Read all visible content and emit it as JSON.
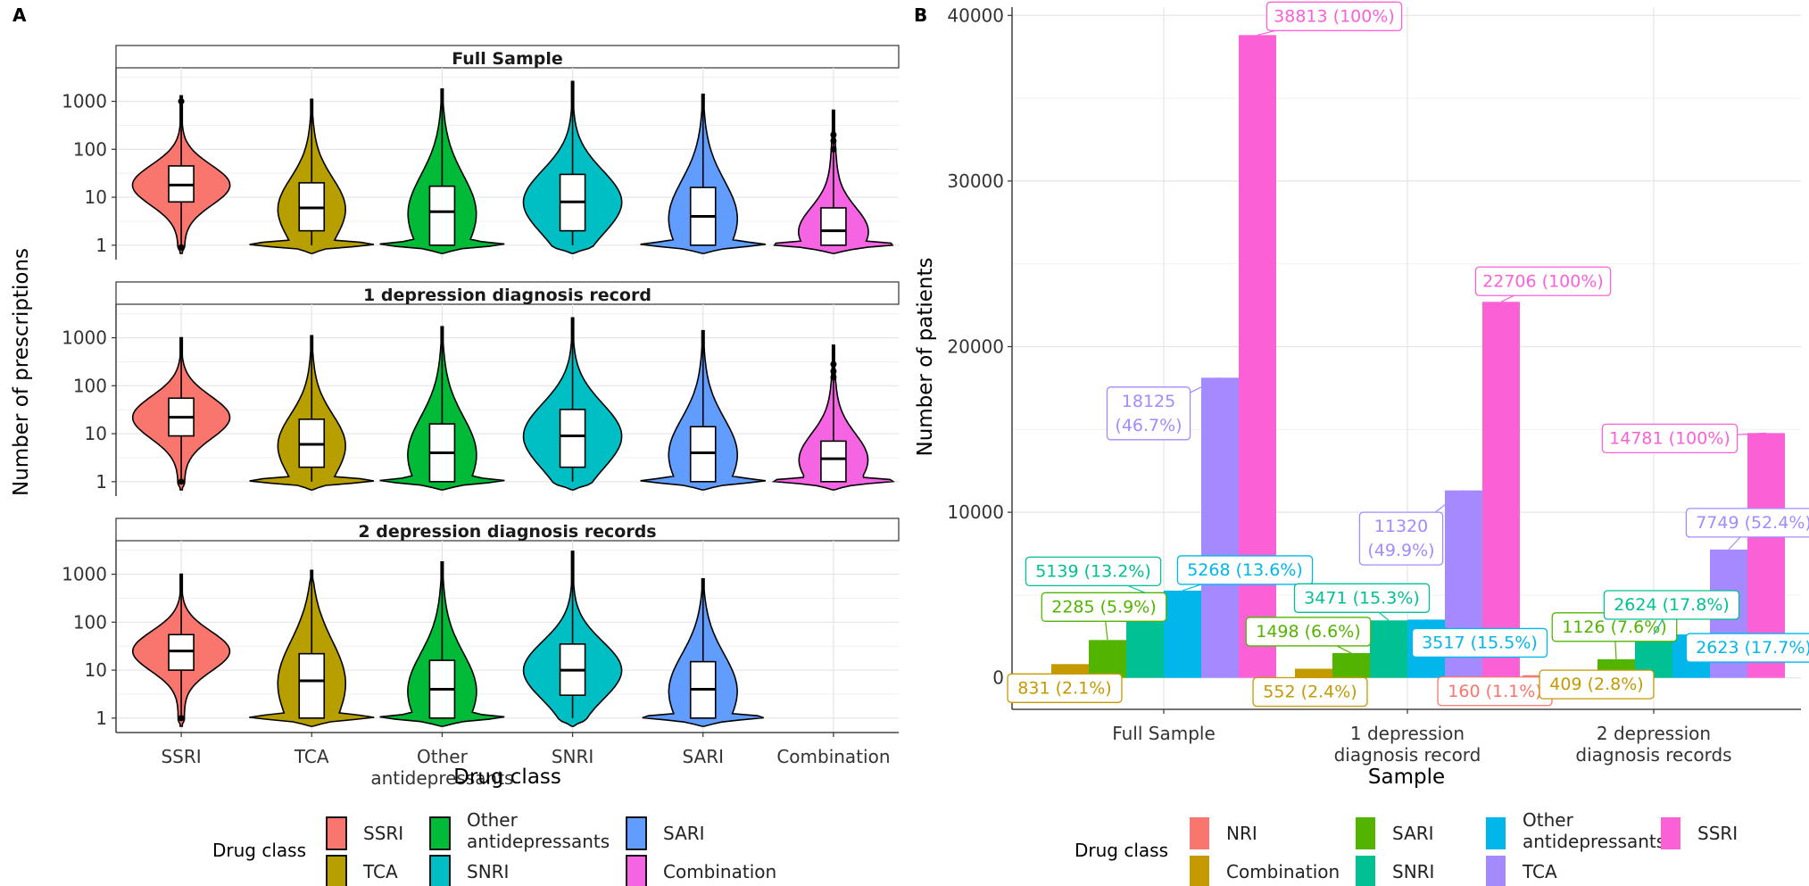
{
  "chart_data": [
    {
      "panel_letter": "A",
      "type": "violin",
      "ylabel": "Number of prescriptions",
      "xlabel": "Drug class",
      "yscale": "log10",
      "ylim": [
        0.5,
        5000
      ],
      "yticks": [
        1,
        10,
        100,
        1000
      ],
      "ytick_labels": [
        "1",
        "10",
        "100",
        "1000"
      ],
      "categories": [
        "SSRI",
        "TCA",
        "Other\nantidepressants",
        "SNRI",
        "SARI",
        "Combination"
      ],
      "colors": [
        "#F8766D",
        "#B79F00",
        "#00BA38",
        "#00BFC4",
        "#619CFF",
        "#F564E3"
      ],
      "grid": true,
      "legend": {
        "title": "Drug class",
        "position": "bottom",
        "entries": [
          "SSRI",
          "TCA",
          "Other\nantidepressants",
          "SNRI",
          "SARI",
          "Combination"
        ]
      },
      "facets": [
        {
          "title": "Full Sample",
          "groups": [
            {
              "category": "SSRI",
              "min": 1,
              "q1": 8,
              "median": 18,
              "q3": 45,
              "max": 1300,
              "outliers": [
                0.9,
                1000
              ]
            },
            {
              "category": "TCA",
              "min": 1,
              "q1": 2,
              "median": 6,
              "q3": 20,
              "max": 1100
            },
            {
              "category": "Other\nantidepressants",
              "min": 1,
              "q1": 1,
              "median": 5,
              "q3": 17,
              "max": 1800
            },
            {
              "category": "SNRI",
              "min": 1,
              "q1": 2,
              "median": 8,
              "q3": 30,
              "max": 2600
            },
            {
              "category": "SARI",
              "min": 1,
              "q1": 1,
              "median": 4,
              "q3": 16,
              "max": 1400
            },
            {
              "category": "Combination",
              "min": 1,
              "q1": 1,
              "median": 2,
              "q3": 6,
              "max": 650,
              "outliers": [
                100,
                150,
                200
              ]
            }
          ]
        },
        {
          "title": "1 depression diagnosis record",
          "groups": [
            {
              "category": "SSRI",
              "min": 1,
              "q1": 9,
              "median": 22,
              "q3": 55,
              "max": 1000,
              "outliers": [
                1
              ]
            },
            {
              "category": "TCA",
              "min": 1,
              "q1": 2,
              "median": 6,
              "q3": 20,
              "max": 1100
            },
            {
              "category": "Other\nantidepressants",
              "min": 1,
              "q1": 1,
              "median": 4,
              "q3": 16,
              "max": 1700
            },
            {
              "category": "SNRI",
              "min": 1,
              "q1": 2,
              "median": 9,
              "q3": 32,
              "max": 2600
            },
            {
              "category": "SARI",
              "min": 1,
              "q1": 1,
              "median": 4,
              "q3": 14,
              "max": 1400
            },
            {
              "category": "Combination",
              "min": 1,
              "q1": 1,
              "median": 3,
              "q3": 7,
              "max": 700,
              "outliers": [
                150,
                200,
                280
              ]
            }
          ]
        },
        {
          "title": "2 depression diagnosis records",
          "groups": [
            {
              "category": "SSRI",
              "min": 1,
              "q1": 10,
              "median": 25,
              "q3": 55,
              "max": 1000,
              "outliers": [
                1
              ]
            },
            {
              "category": "TCA",
              "min": 1,
              "q1": 1,
              "median": 6,
              "q3": 22,
              "max": 1200
            },
            {
              "category": "Other\nantidepressants",
              "min": 1,
              "q1": 1,
              "median": 4,
              "q3": 16,
              "max": 1800
            },
            {
              "category": "SNRI",
              "min": 1,
              "q1": 3,
              "median": 10,
              "q3": 35,
              "max": 3000
            },
            {
              "category": "SARI",
              "min": 1,
              "q1": 1,
              "median": 4,
              "q3": 15,
              "max": 800
            }
          ]
        }
      ]
    },
    {
      "panel_letter": "B",
      "type": "bar",
      "xlabel": "Sample",
      "ylabel": "Number of patients",
      "ylim": [
        -1900,
        40500
      ],
      "yticks": [
        0,
        10000,
        20000,
        30000,
        40000
      ],
      "ytick_labels": [
        "0",
        "10000",
        "20000",
        "30000",
        "40000"
      ],
      "categories": [
        "Full Sample",
        "1 depression\ndiagnosis record",
        "2 depression\ndiagnosis records"
      ],
      "grid": true,
      "legend": {
        "title": "Drug class",
        "position": "bottom",
        "entries": [
          "NRI",
          "Combination",
          "SARI",
          "SNRI",
          "Other\nantidepressants",
          "TCA",
          "SSRI"
        ]
      },
      "series": [
        {
          "name": "NRI",
          "color": "#F8766D",
          "values": [
            null,
            null,
            160
          ],
          "labels": [
            "",
            "",
            "160 (1.1%)"
          ]
        },
        {
          "name": "Combination",
          "color": "#C49A00",
          "values": [
            831,
            552,
            409
          ],
          "labels": [
            "831 (2.1%)",
            "552 (2.4%)",
            "409 (2.8%)"
          ]
        },
        {
          "name": "SARI",
          "color": "#53B400",
          "values": [
            2285,
            1498,
            1126
          ],
          "labels": [
            "2285 (5.9%)",
            "1498 (6.6%)",
            "1126 (7.6%)"
          ]
        },
        {
          "name": "SNRI",
          "color": "#00C094",
          "values": [
            5139,
            3471,
            2624
          ],
          "labels": [
            "5139 (13.2%)",
            "3471 (15.3%)",
            "2624 (17.8%)"
          ]
        },
        {
          "name": "Other\nantidepressants",
          "color": "#00B6EB",
          "values": [
            5268,
            3517,
            2623
          ],
          "labels": [
            "5268 (13.6%)",
            "3517 (15.5%)",
            "2623 (17.7%)"
          ]
        },
        {
          "name": "TCA",
          "color": "#A58AFF",
          "values": [
            18125,
            11320,
            7749
          ],
          "labels": [
            "18125\n(46.7%)",
            "11320\n(49.9%)",
            "7749 (52.4%)"
          ]
        },
        {
          "name": "SSRI",
          "color": "#FB61D7",
          "values": [
            38813,
            22706,
            14781
          ],
          "labels": [
            "38813 (100%)",
            "22706 (100%)",
            "14781 (100%)"
          ]
        }
      ]
    }
  ]
}
